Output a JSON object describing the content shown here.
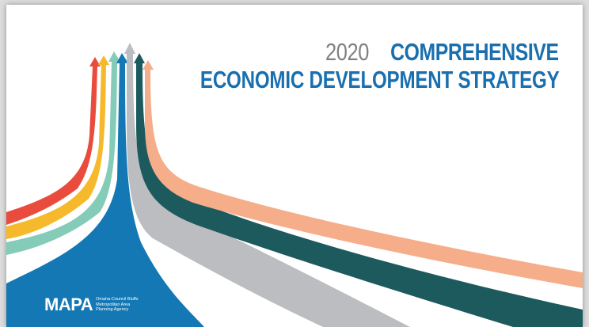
{
  "document": {
    "title_year": "2020",
    "title_line1_bold": "COMPREHENSIVE",
    "title_line2": "ECONOMIC DEVELOPMENT STRATEGY"
  },
  "logo": {
    "mark": "MAPA",
    "sub_line1": "Omaha-Council Bluffs",
    "sub_line2": "Metropolitan Area",
    "sub_line3": "Planning Agency"
  },
  "colors": {
    "title_blue": "#1a6faf",
    "title_grey": "#808080",
    "red": "#e94b3c",
    "yellow": "#f6b92b",
    "mint": "#84cbb8",
    "blue": "#1378b4",
    "grey": "#bcbdc0",
    "teal": "#1c5a5e",
    "peach": "#f6ad8a"
  }
}
